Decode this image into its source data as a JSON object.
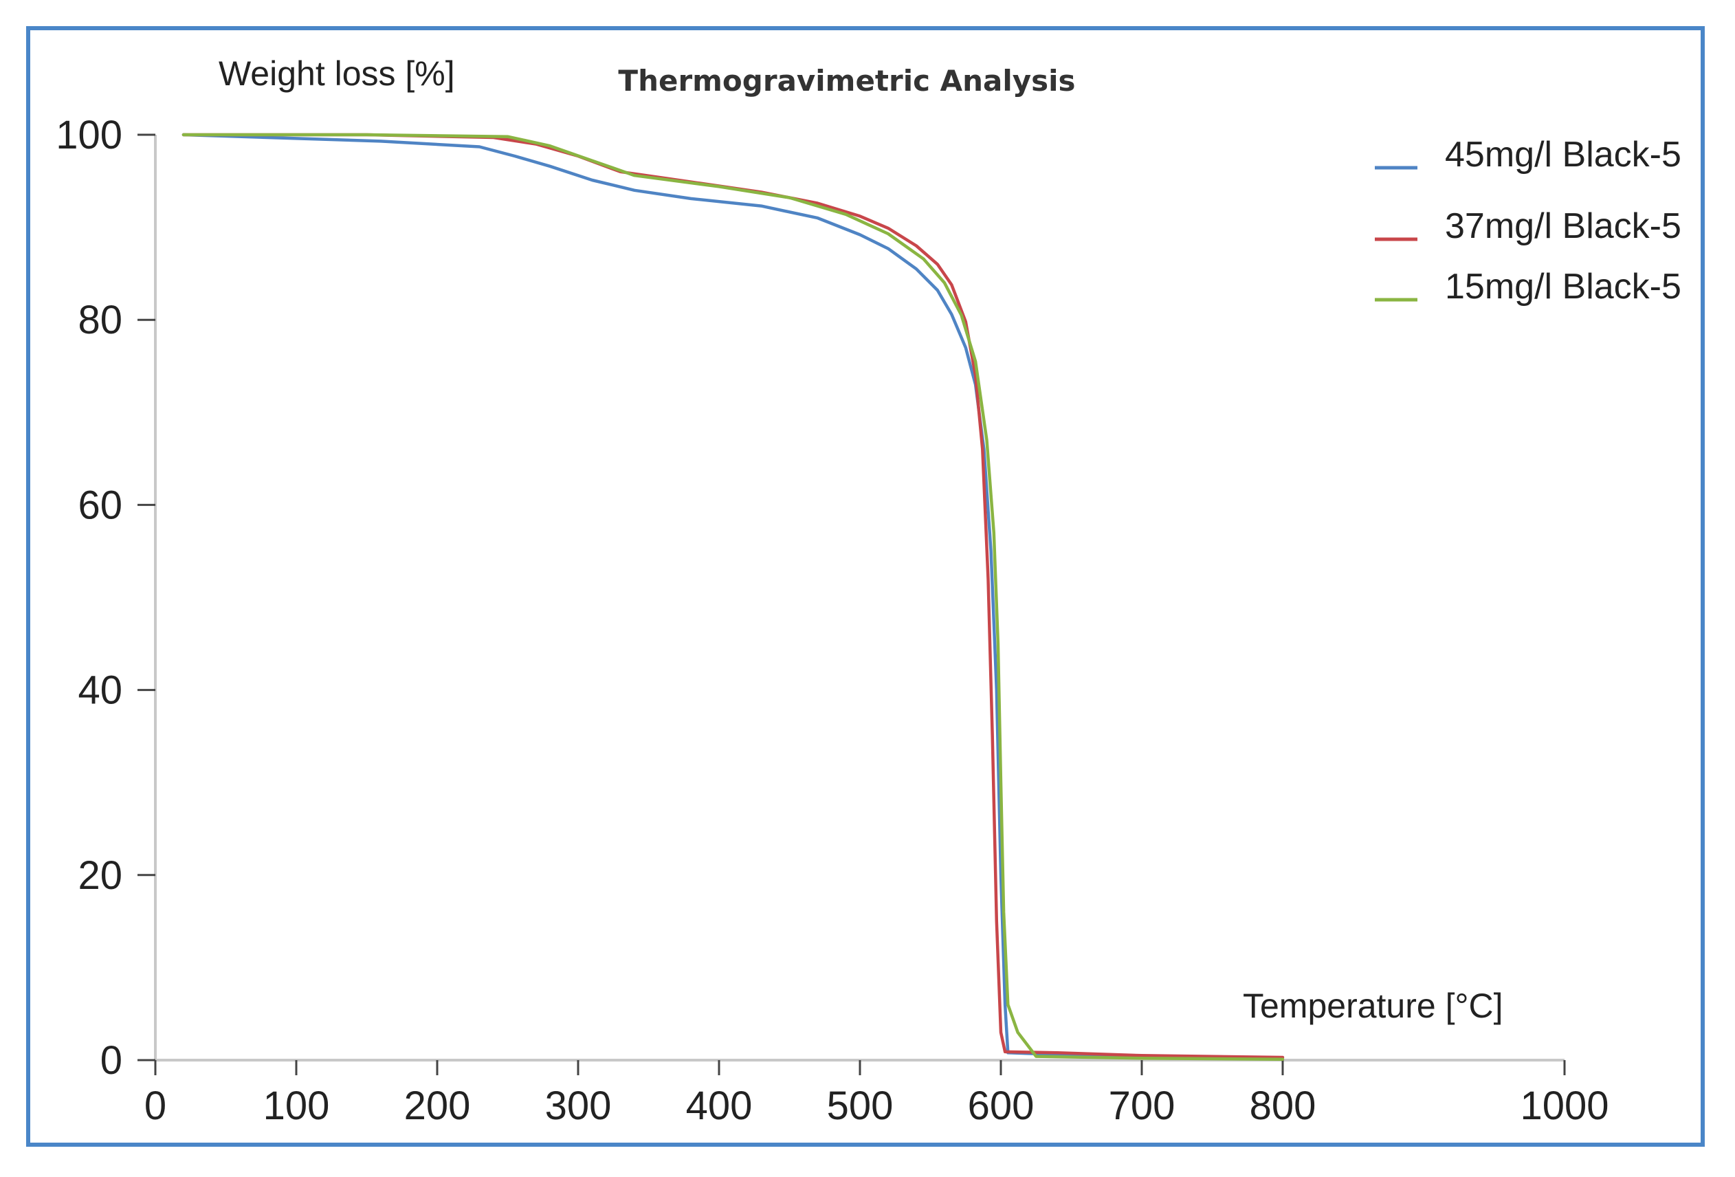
{
  "chart_data": {
    "type": "line",
    "title": "Thermogravimetric Analysis",
    "ylabel": "Weight loss [%]",
    "xlabel": "Temperature [°C]",
    "xlim": [
      0,
      1000
    ],
    "ylim": [
      0,
      100
    ],
    "x_ticks": [
      "0",
      "100",
      "200",
      "300",
      "400",
      "500",
      "600",
      "700",
      "800",
      "1000"
    ],
    "y_ticks": [
      "0",
      "20",
      "40",
      "60",
      "80",
      "100"
    ],
    "legend_position": "top-right",
    "series": [
      {
        "name": "45mg/l Black-5",
        "color": "#4f84c4",
        "x": [
          20,
          160,
          230,
          255,
          280,
          310,
          340,
          380,
          430,
          470,
          500,
          520,
          540,
          555,
          565,
          575,
          582,
          588,
          593,
          597,
          600,
          603,
          605,
          640,
          700
        ],
        "y": [
          100,
          99.3,
          98.7,
          97.7,
          96.6,
          95.1,
          94.0,
          93.1,
          92.3,
          91.0,
          89.2,
          87.7,
          85.5,
          83.2,
          80.6,
          77.0,
          73.0,
          66.0,
          55.0,
          40.0,
          20.0,
          6.0,
          0.8,
          0.6,
          0.4
        ]
      },
      {
        "name": "37mg/l Black-5",
        "color": "#c8464a",
        "x": [
          20,
          150,
          240,
          270,
          300,
          330,
          380,
          430,
          470,
          500,
          520,
          540,
          555,
          565,
          575,
          582,
          587,
          591,
          594,
          597,
          600,
          603,
          640,
          700,
          800
        ],
        "y": [
          100,
          100,
          99.7,
          99.0,
          97.7,
          96.0,
          94.9,
          93.8,
          92.6,
          91.2,
          89.9,
          88.0,
          86.0,
          83.8,
          79.8,
          74.0,
          66.0,
          52.0,
          35.0,
          15.0,
          3.0,
          0.9,
          0.8,
          0.5,
          0.3
        ]
      },
      {
        "name": "15mg/l Black-5",
        "color": "#8ab542",
        "x": [
          20,
          150,
          250,
          280,
          310,
          340,
          400,
          450,
          490,
          520,
          545,
          560,
          572,
          582,
          590,
          595,
          598,
          600,
          602,
          605,
          612,
          625,
          700,
          800
        ],
        "y": [
          100,
          100,
          99.8,
          98.8,
          97.2,
          95.6,
          94.4,
          93.2,
          91.4,
          89.3,
          86.6,
          84.0,
          80.5,
          75.5,
          67.0,
          57.0,
          45.0,
          30.0,
          16.0,
          6.0,
          3.0,
          0.4,
          0.2,
          0.1
        ]
      }
    ]
  }
}
